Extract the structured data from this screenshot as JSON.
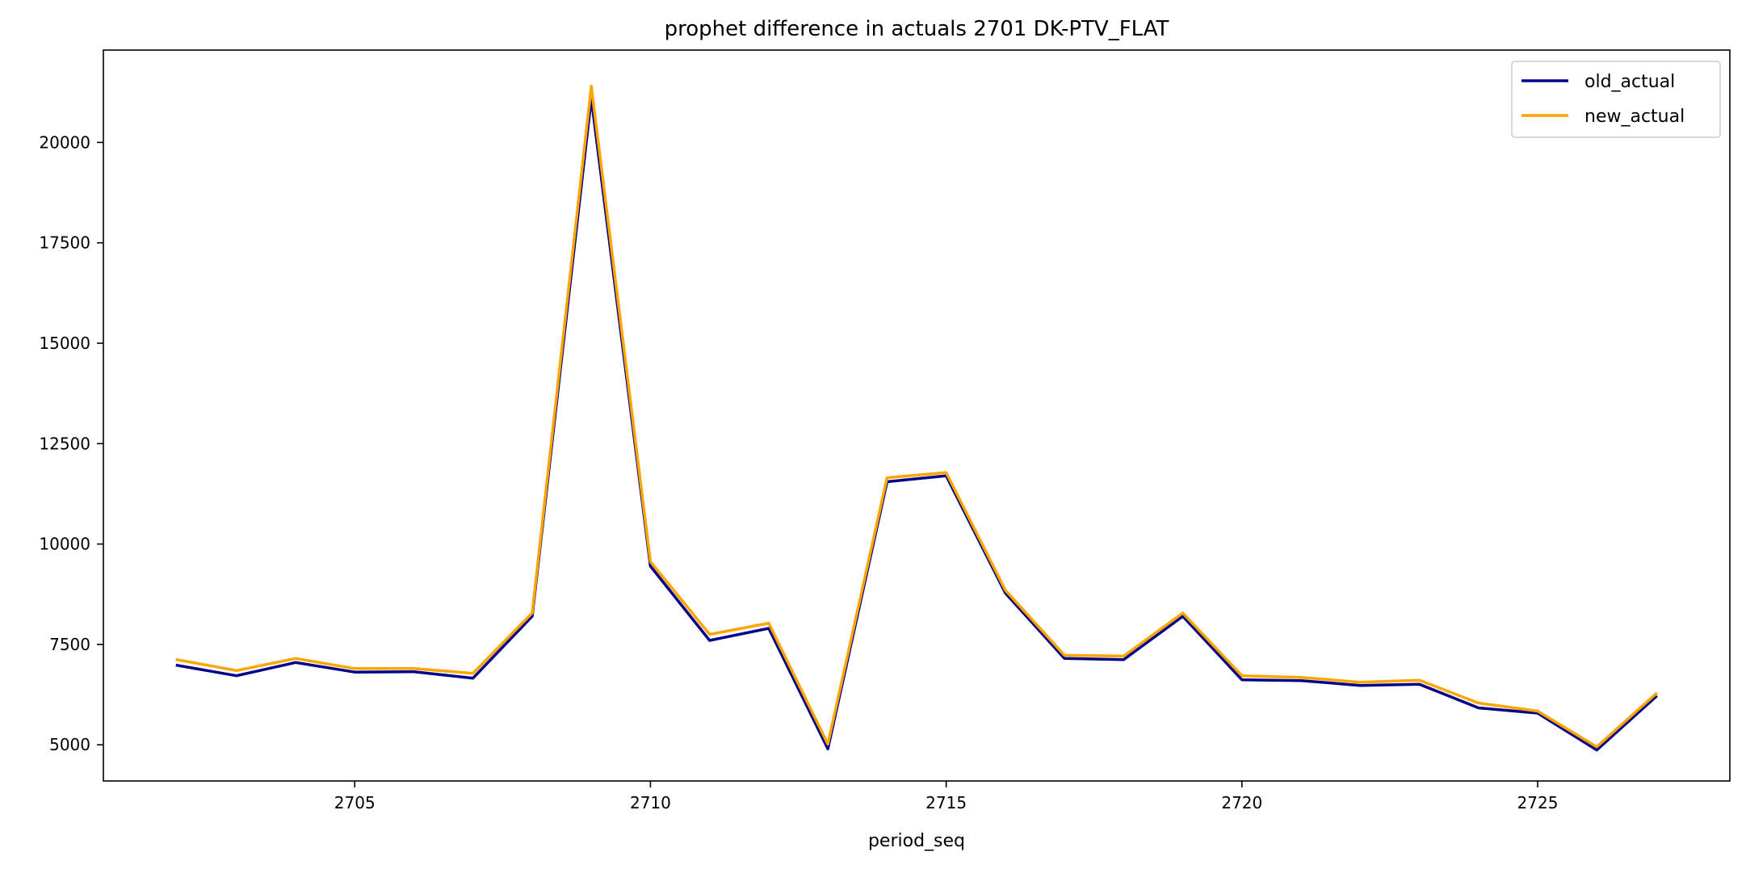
{
  "chart_data": {
    "type": "line",
    "title": "prophet difference in actuals 2701 DK-PTV_FLAT",
    "xlabel": "period_seq",
    "ylabel": "",
    "x": [
      2702,
      2703,
      2704,
      2705,
      2706,
      2707,
      2708,
      2709,
      2710,
      2711,
      2712,
      2713,
      2714,
      2715,
      2716,
      2717,
      2718,
      2719,
      2720,
      2721,
      2722,
      2723,
      2724,
      2725,
      2726,
      2727
    ],
    "series": [
      {
        "name": "old_actual",
        "color": "#00008b",
        "values": [
          6980,
          6720,
          7050,
          6810,
          6820,
          6660,
          8200,
          21100,
          9450,
          7600,
          7900,
          4900,
          11550,
          11700,
          8780,
          7150,
          7120,
          8200,
          6620,
          6600,
          6480,
          6510,
          5920,
          5790,
          4870,
          6200
        ]
      },
      {
        "name": "new_actual",
        "color": "#ffa500",
        "values": [
          7120,
          6850,
          7150,
          6900,
          6900,
          6780,
          8280,
          21400,
          9560,
          7750,
          8030,
          5020,
          11650,
          11780,
          8850,
          7230,
          7210,
          8280,
          6720,
          6680,
          6560,
          6610,
          6040,
          5840,
          4950,
          6270
        ]
      }
    ],
    "xticks": [
      2705,
      2710,
      2715,
      2720,
      2725
    ],
    "yticks": [
      5000,
      7500,
      10000,
      12500,
      15000,
      17500,
      20000
    ],
    "xlim": [
      2700.75,
      2728.25
    ],
    "ylim": [
      4100,
      22300
    ],
    "grid": false,
    "legend_position": "top-right"
  }
}
